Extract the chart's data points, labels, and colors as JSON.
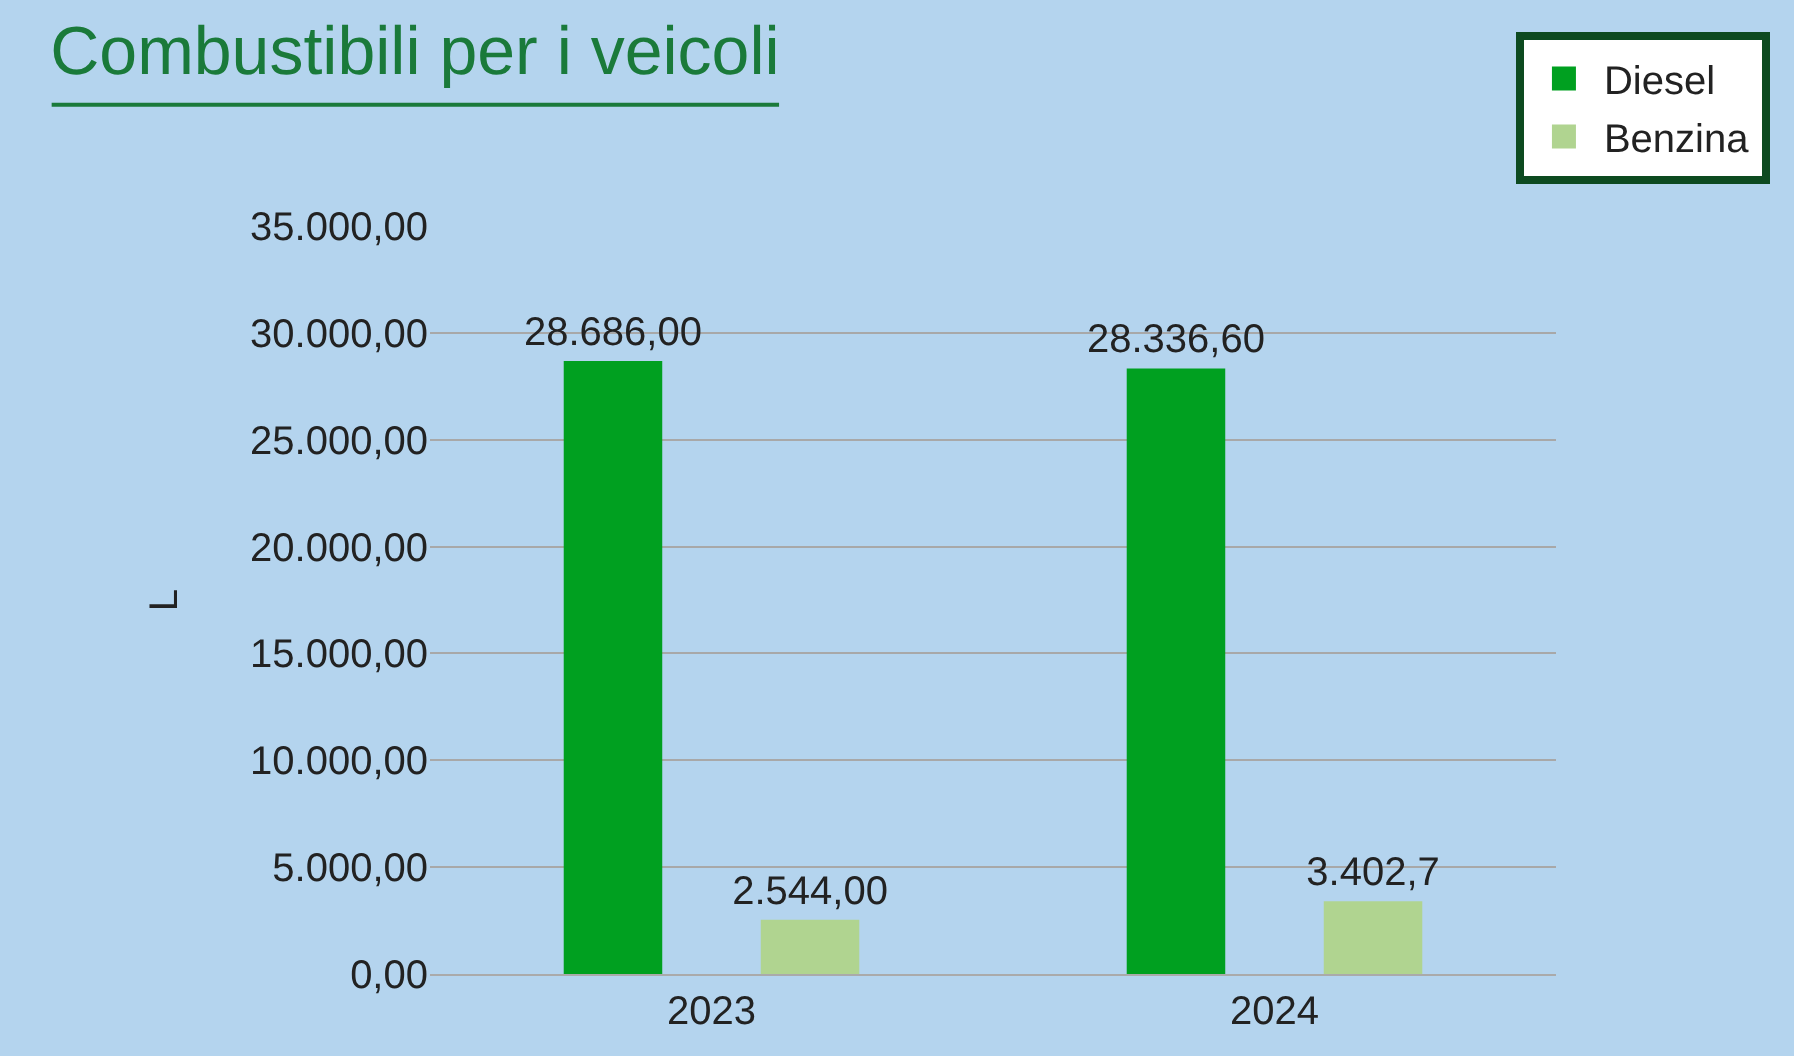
{
  "chart_data": {
    "type": "bar",
    "title": "Combustibili per i veicoli",
    "ylabel": "L",
    "categories": [
      "2023",
      "2024"
    ],
    "series": [
      {
        "name": "Diesel",
        "color": "#00a020",
        "values": [
          28686.0,
          28336.6
        ],
        "value_labels": [
          "28.686,00",
          "28.336,60"
        ]
      },
      {
        "name": "Benzina",
        "color": "#b0d490",
        "values": [
          2544.0,
          3402.7
        ],
        "value_labels": [
          "2.544,00",
          "3.402,7"
        ]
      }
    ],
    "ylim": [
      0,
      35000
    ],
    "yticks": [
      {
        "value": 0,
        "label": "0,00"
      },
      {
        "value": 5000,
        "label": "5.000,00"
      },
      {
        "value": 10000,
        "label": "10.000,00"
      },
      {
        "value": 15000,
        "label": "15.000,00"
      },
      {
        "value": 20000,
        "label": "20.000,00"
      },
      {
        "value": 25000,
        "label": "25.000,00"
      },
      {
        "value": 30000,
        "label": "30.000,00"
      },
      {
        "value": 35000,
        "label": "35.000,00"
      }
    ],
    "grid": "y",
    "legend": "top right"
  }
}
